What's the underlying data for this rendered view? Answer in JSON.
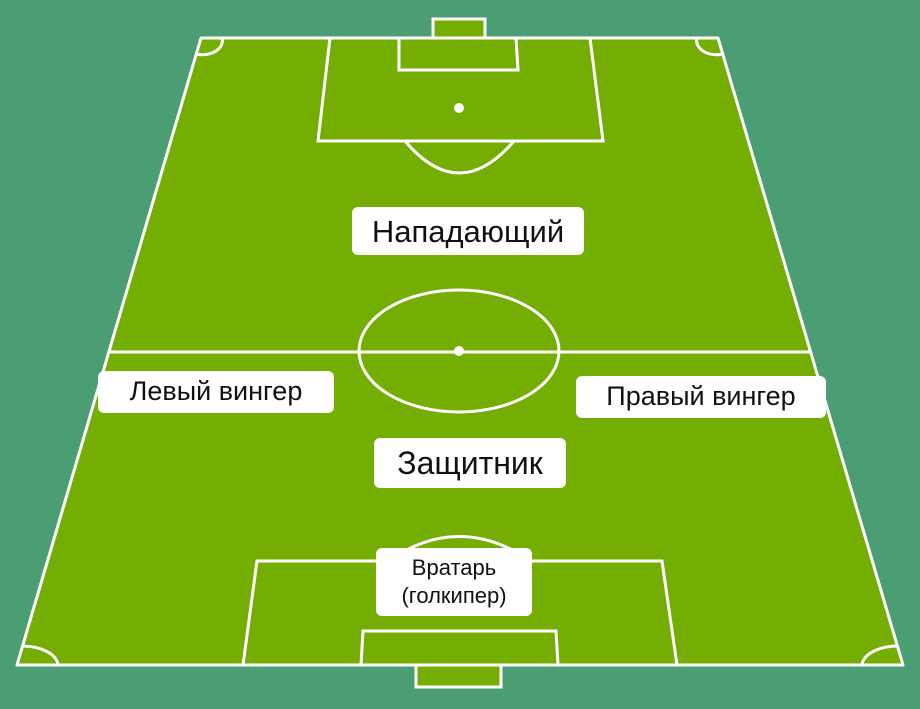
{
  "colors": {
    "background": "#4b9e74",
    "field": "#75ae03",
    "lines": "#ffffff",
    "label_bg": "#ffffff",
    "label_text": "#111111"
  },
  "positions": {
    "forward": "Нападающий",
    "left_winger": "Левый вингер",
    "right_winger": "Правый вингер",
    "defender": "Защитник",
    "goalkeeper_line1": "Вратарь",
    "goalkeeper_line2": "(голкипер)"
  }
}
